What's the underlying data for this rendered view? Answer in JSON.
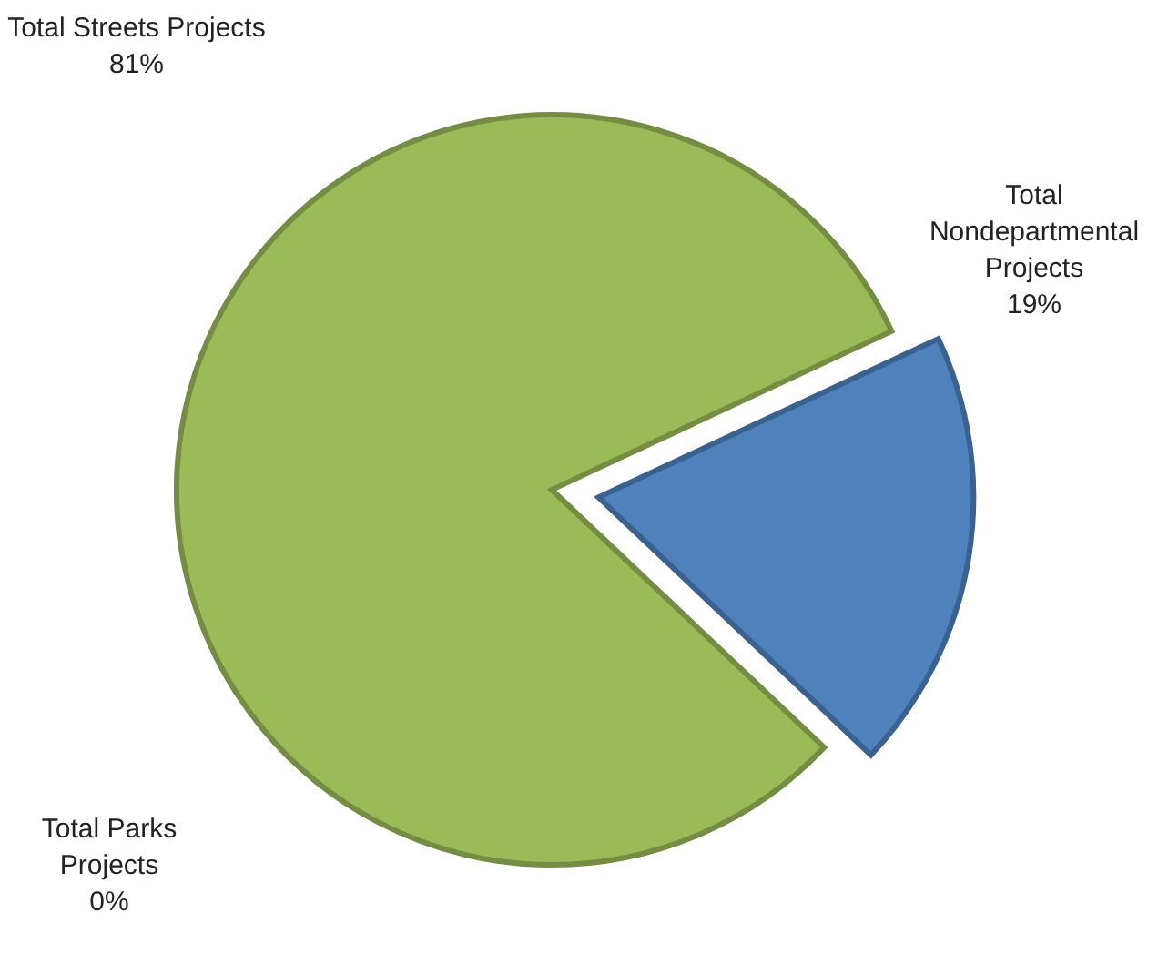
{
  "chart_data": {
    "type": "pie",
    "categories": [
      "Total Streets Projects",
      "Total Nondepartmental Projects",
      "Total Parks Projects"
    ],
    "values": [
      81,
      19,
      0
    ],
    "colors": [
      "#9bbb59",
      "#4f81bd",
      "#9bbb59"
    ],
    "value_labels": [
      "81%",
      "19%",
      "0%"
    ],
    "legend": false
  }
}
